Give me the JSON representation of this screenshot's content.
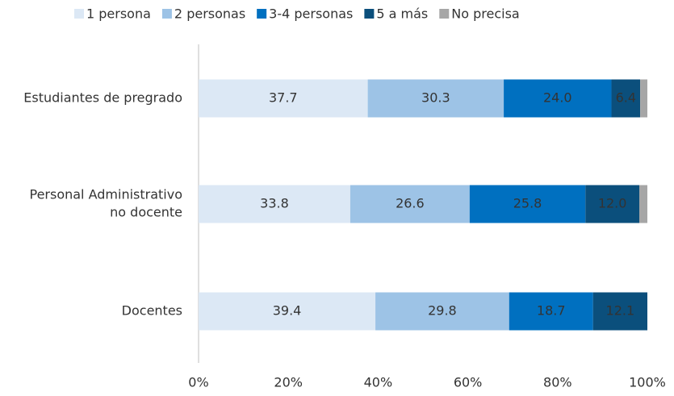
{
  "chart_data": {
    "type": "stacked-bar-horizontal",
    "categories": [
      [
        "Estudiantes de pregrado"
      ],
      [
        "Personal Administrativo",
        "no docente"
      ],
      [
        "Docentes"
      ]
    ],
    "series": [
      {
        "name": "1 persona",
        "color": "#dce8f5",
        "values": [
          37.7,
          33.8,
          39.4
        ]
      },
      {
        "name": "2 personas",
        "color": "#9dc3e6",
        "values": [
          30.3,
          26.6,
          29.8
        ]
      },
      {
        "name": "3-4 personas",
        "color": "#0070c0",
        "values": [
          24.0,
          25.8,
          18.7
        ],
        "value_labels": [
          "24.0",
          "25.8",
          "18.7"
        ]
      },
      {
        "name": "5 a más",
        "color": "#0b4f7c",
        "values": [
          6.4,
          12.0,
          12.1
        ],
        "value_labels": [
          "6.4",
          "12.0",
          "12.1"
        ]
      },
      {
        "name": "No precisa",
        "color": "#a6a6a6",
        "values": [
          1.6,
          1.8,
          0
        ],
        "value_labels": [
          null,
          null,
          null
        ]
      }
    ],
    "xlim": [
      0,
      100
    ],
    "xticks": [
      {
        "value": 0,
        "label": "0%"
      },
      {
        "value": 20,
        "label": "20%"
      },
      {
        "value": 40,
        "label": "40%"
      },
      {
        "value": 60,
        "label": "60%"
      },
      {
        "value": 80,
        "label": "80%"
      },
      {
        "value": 100,
        "label": "100%"
      }
    ],
    "legend": "top"
  }
}
